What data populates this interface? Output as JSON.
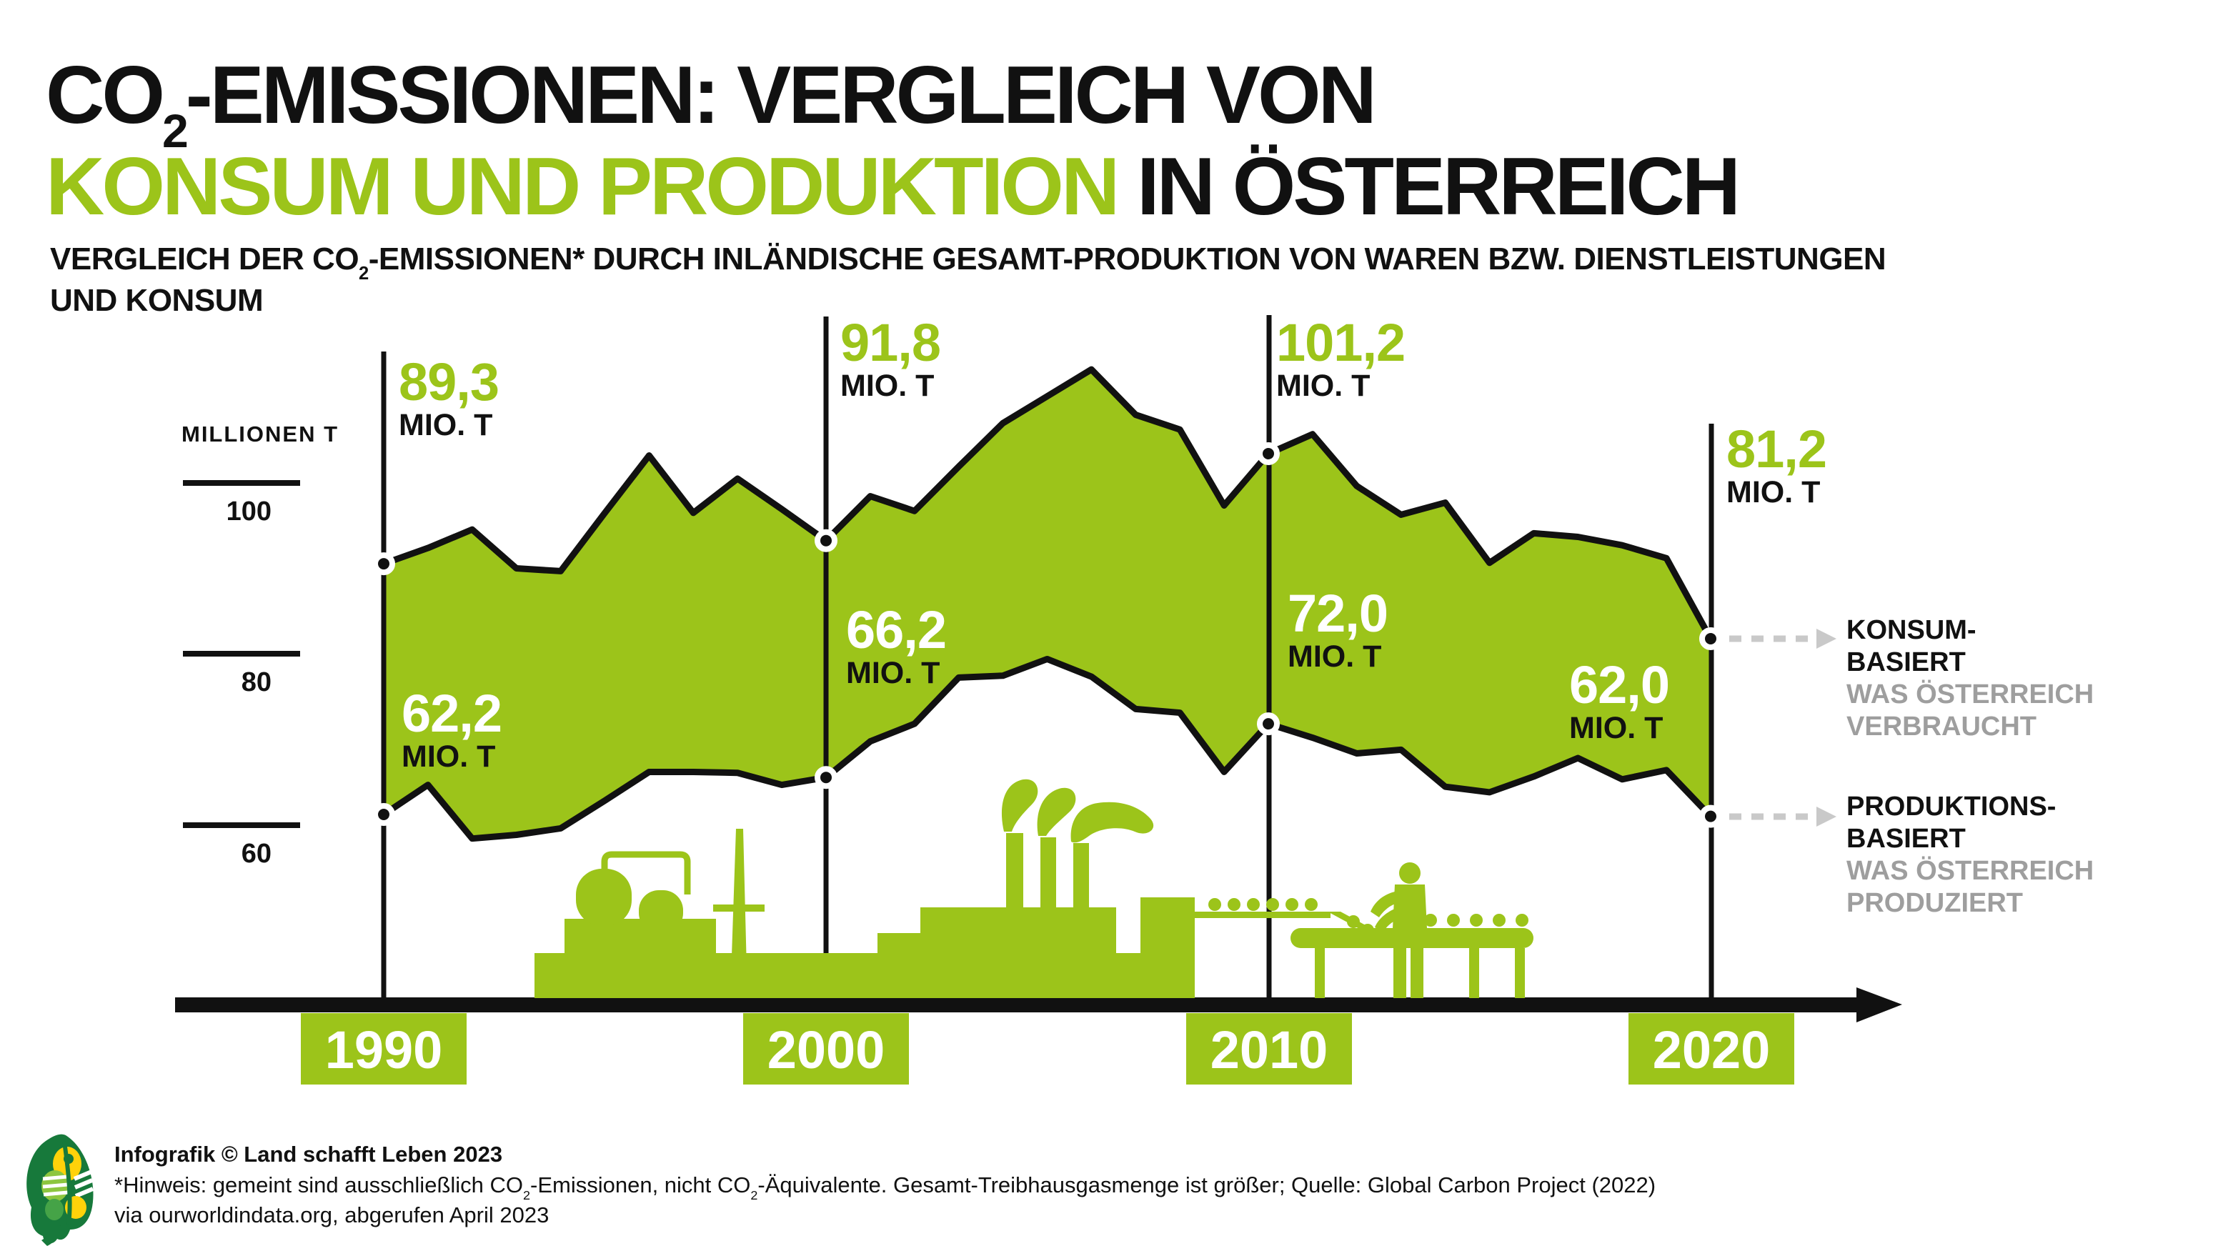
{
  "title": {
    "line1_pre_sub": "CO",
    "line1_sub": "2",
    "line1_post": "-EMISSIONEN: VERGLEICH VON",
    "line2_highlight": "KONSUM UND PRODUKTION",
    "line2_rest": " IN ÖSTERREICH"
  },
  "subtitle": {
    "pre_sub": "VERGLEICH DER CO",
    "sub": "2",
    "post": "-EMISSIONEN* DURCH INLÄNDISCHE GESAMT-PRODUKTION VON WAREN BZW. DIENSTLEISTUNGEN",
    "line2": "UND KONSUM"
  },
  "axis": {
    "unit_label": "MILLIONEN T",
    "ticks": [
      "100",
      "80",
      "60"
    ],
    "years": [
      "1990",
      "2000",
      "2010",
      "2020"
    ]
  },
  "labels": {
    "mio_unit": "MIO. T",
    "konsum": {
      "y1990": "89,3",
      "y2000": "91,8",
      "y2010": "101,2",
      "y2020": "81,2"
    },
    "produktion": {
      "y1990": "62,2",
      "y2000": "66,2",
      "y2010": "72,0",
      "y2020": "62,0"
    }
  },
  "legend": {
    "konsum": {
      "line1": "KONSUM-",
      "line2": "BASIERT",
      "sub1": "WAS ÖSTERREICH",
      "sub2": "VERBRAUCHT"
    },
    "produktion": {
      "line1": "PRODUKTIONS-",
      "line2": "BASIERT",
      "sub1": "WAS ÖSTERREICH",
      "sub2": "PRODUZIERT"
    }
  },
  "footer": {
    "credit": "Infografik © Land schafft Leben 2023",
    "note_a": "*Hinweis: gemeint sind ausschließlich CO",
    "note_sub1": "2",
    "note_b": "-Emissionen, nicht CO",
    "note_sub2": "2",
    "note_c": "-Äquivalente. Gesamt-Treibhausgasmenge ist größer; Quelle: Global Carbon Project (2022)",
    "note_line2": "via ourworldindata.org, abgerufen April 2023"
  },
  "colors": {
    "green": "#9CC41A",
    "black": "#111111",
    "gray_text": "#9E9E9E",
    "arrow_gray": "#C9C9C9",
    "leaf_dark_green": "#17793B",
    "leaf_yellow": "#FFD20A",
    "leaf_mid_green": "#45A347",
    "leaf_light_green": "#8DC63F"
  },
  "chart_data": {
    "type": "area",
    "title": "CO2-Emissionen: Vergleich von Konsum und Produktion in Österreich",
    "ylabel": "Millionen T",
    "yticks": [
      100,
      80,
      60
    ],
    "ylim": [
      55,
      118
    ],
    "grid": false,
    "legend_position": "right",
    "x": [
      1990,
      1991,
      1992,
      1993,
      1994,
      1995,
      1996,
      1997,
      1998,
      1999,
      2000,
      2001,
      2002,
      2003,
      2004,
      2005,
      2006,
      2007,
      2008,
      2009,
      2010,
      2011,
      2012,
      2013,
      2014,
      2015,
      2016,
      2017,
      2018,
      2019,
      2020
    ],
    "series": [
      {
        "name": "Konsum-basiert (was Österreich verbraucht)",
        "values": [
          89.3,
          91.0,
          93.0,
          88.8,
          88.5,
          94.8,
          101.0,
          94.8,
          98.5,
          95.2,
          91.8,
          96.6,
          95.0,
          99.8,
          104.5,
          107.4,
          110.3,
          105.4,
          103.8,
          95.6,
          101.2,
          103.3,
          97.7,
          94.6,
          95.9,
          89.4,
          92.6,
          92.2,
          91.3,
          89.9,
          81.2
        ]
      },
      {
        "name": "Produktions-basiert (was Österreich produziert)",
        "values": [
          62.2,
          65.4,
          59.6,
          60.0,
          60.7,
          63.7,
          66.8,
          66.8,
          66.7,
          65.4,
          66.2,
          70.1,
          72.0,
          77.0,
          77.2,
          79.0,
          77.1,
          73.6,
          73.2,
          66.8,
          72.0,
          70.5,
          68.8,
          69.2,
          65.2,
          64.6,
          66.3,
          68.3,
          66.0,
          67.0,
          62.0
        ]
      }
    ],
    "marked_points": {
      "years": [
        1990,
        2000,
        2010,
        2020
      ],
      "konsum": [
        89.3,
        91.8,
        101.2,
        81.2
      ],
      "produktion": [
        62.2,
        66.2,
        72.0,
        62.0
      ]
    }
  }
}
